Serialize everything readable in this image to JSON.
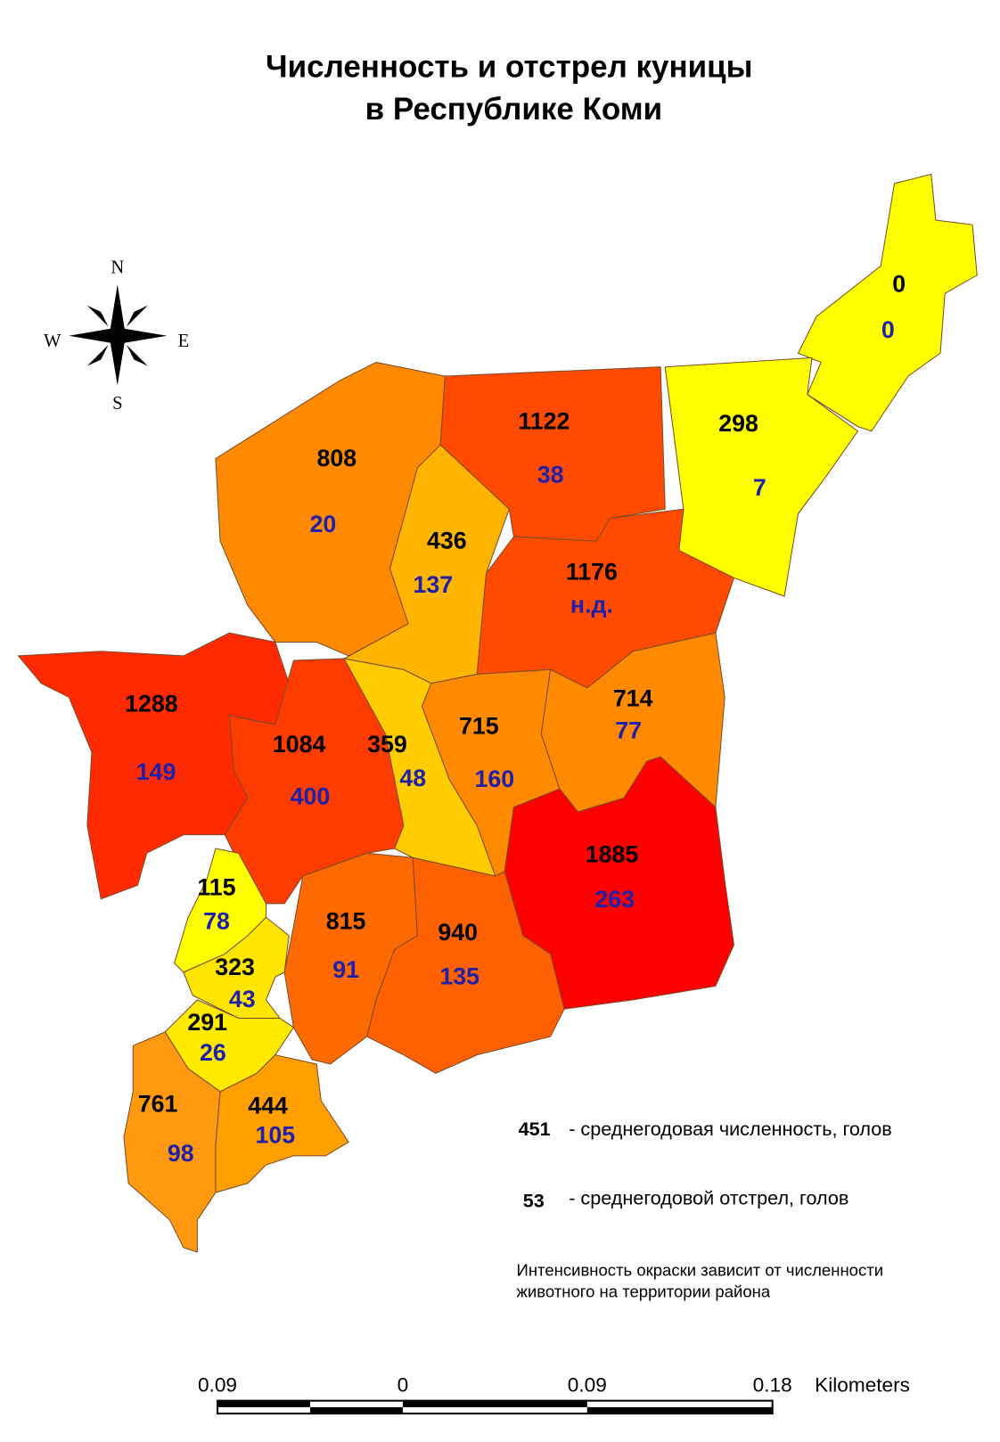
{
  "title": [
    "Численность и отстрел куницы",
    "в Республике Коми"
  ],
  "compass": {
    "n": "N",
    "e": "E",
    "s": "S",
    "w": "W"
  },
  "districts": [
    {
      "count": 0,
      "harvest": 0
    },
    {
      "count": 298,
      "harvest": 7
    },
    {
      "count": 1122,
      "harvest": 38
    },
    {
      "count": 808,
      "harvest": 20
    },
    {
      "count": 436,
      "harvest": 137
    },
    {
      "count": 1176,
      "harvest": "н.д."
    },
    {
      "count": 1288,
      "harvest": 149
    },
    {
      "count": 1084,
      "harvest": 400
    },
    {
      "count": 359,
      "harvest": 48
    },
    {
      "count": 715,
      "harvest": 160
    },
    {
      "count": 714,
      "harvest": 77
    },
    {
      "count": 1885,
      "harvest": 263
    },
    {
      "count": 115,
      "harvest": 78
    },
    {
      "count": 815,
      "harvest": 91
    },
    {
      "count": 940,
      "harvest": 135
    },
    {
      "count": 323,
      "harvest": 43
    },
    {
      "count": 291,
      "harvest": 26
    },
    {
      "count": 761,
      "harvest": 98
    },
    {
      "count": 444,
      "harvest": 105
    }
  ],
  "legend": {
    "count_sample": "451",
    "count_text": "- среднегодовая численность, голов",
    "harvest_sample": "53",
    "harvest_text": "- среднегодовой отстрел, голов",
    "note": [
      "Интенсивность окраски зависит от численности",
      "животного на территории района"
    ]
  },
  "scale_bar": {
    "labels": [
      "0.09",
      "0",
      "0.09",
      "0.18"
    ],
    "unit": "Kilometers"
  }
}
